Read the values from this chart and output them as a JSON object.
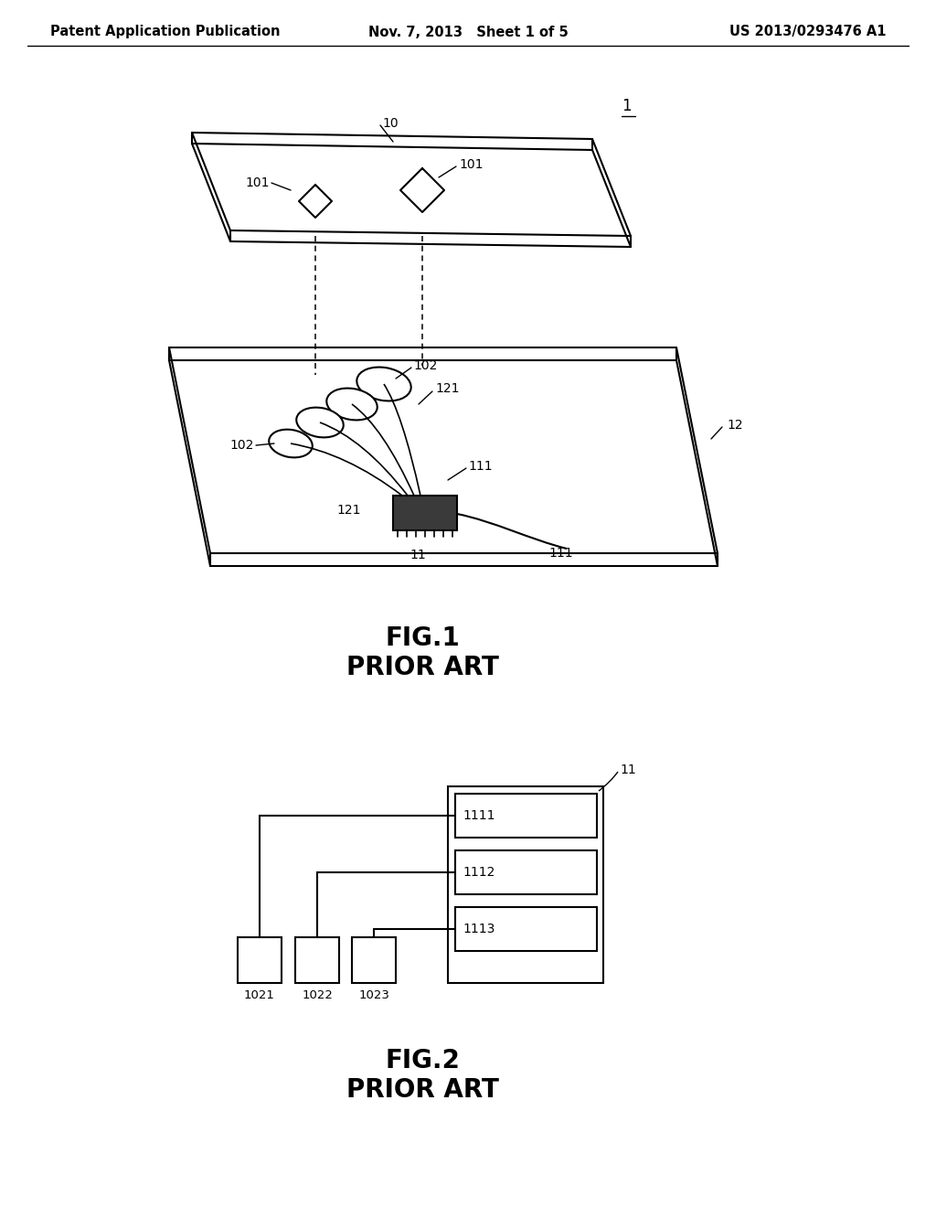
{
  "title_left": "Patent Application Publication",
  "title_center": "Nov. 7, 2013   Sheet 1 of 5",
  "title_right": "US 2013/0293476 A1",
  "fig1_label": "FIG.1",
  "fig1_sub": "PRIOR ART",
  "fig2_label": "FIG.2",
  "fig2_sub": "PRIOR ART",
  "label_1": "1",
  "label_10": "10",
  "label_11_fig1": "11",
  "label_12": "12",
  "label_101a": "101",
  "label_101b": "101",
  "label_102a": "102",
  "label_102b": "102",
  "label_111a": "111",
  "label_111b": "111",
  "label_121a": "121",
  "label_121b": "121",
  "label_11_fig2": "11",
  "label_1111": "1111",
  "label_1112": "1112",
  "label_1113": "1113",
  "label_1021": "1021",
  "label_1022": "1022",
  "label_1023": "1023",
  "bg_color": "#ffffff",
  "line_color": "#000000",
  "font_size_header": 10.5,
  "font_size_fig": 20,
  "font_size_ref": 10
}
